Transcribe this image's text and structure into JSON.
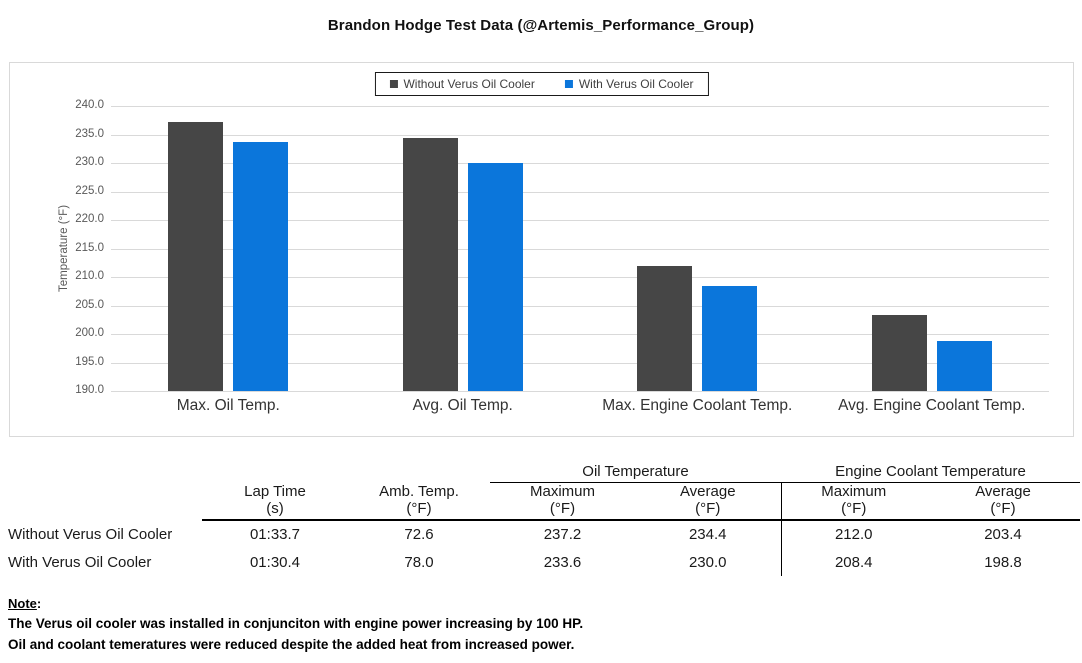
{
  "page_title": "Brandon Hodge Test Data (@Artemis_Performance_Group)",
  "chart_data": {
    "type": "bar",
    "title": "Brandon Hodge Test Data (@Artemis_Performance_Group)",
    "categories": [
      "Max. Oil Temp.",
      "Avg. Oil Temp.",
      "Max. Engine Coolant Temp.",
      "Avg. Engine Coolant Temp."
    ],
    "series": [
      {
        "name": "Without Verus Oil Cooler",
        "color": "#464646",
        "values": [
          237.2,
          234.4,
          212.0,
          203.4
        ]
      },
      {
        "name": "With Verus Oil Cooler",
        "color": "#0b76db",
        "values": [
          233.6,
          230.0,
          208.4,
          198.8
        ]
      }
    ],
    "ylabel": "Temperature (°F)",
    "ylim": [
      190.0,
      240.0
    ],
    "ytick_step": 5.0,
    "ytick_decimals": 1,
    "grid": true,
    "legend_position": "top-center",
    "gridline_color": "#d9d9d9"
  },
  "table": {
    "group_headers": {
      "oil": "Oil Temperature",
      "coolant": "Engine Coolant Temperature"
    },
    "columns": {
      "lap_time": {
        "label": "Lap Time",
        "unit": "(s)"
      },
      "amb_temp": {
        "label": "Amb. Temp.",
        "unit": "(°F)"
      },
      "oil_max": {
        "label": "Maximum",
        "unit": "(°F)"
      },
      "oil_avg": {
        "label": "Average",
        "unit": "(°F)"
      },
      "coolant_max": {
        "label": "Maximum",
        "unit": "(°F)"
      },
      "coolant_avg": {
        "label": "Average",
        "unit": "(°F)"
      }
    },
    "rows": [
      {
        "label": "Without Verus Oil Cooler",
        "values": [
          "01:33.7",
          "72.6",
          "237.2",
          "234.4",
          "212.0",
          "203.4"
        ]
      },
      {
        "label": "With Verus Oil Cooler",
        "values": [
          "01:30.4",
          "78.0",
          "233.6",
          "230.0",
          "208.4",
          "198.8"
        ]
      }
    ]
  },
  "note": {
    "heading": "Note",
    "heading_suffix": ":",
    "lines": [
      "The Verus oil cooler was installed in conjunciton with engine power increasing by 100 HP.",
      "Oil and coolant temeratures were reduced despite the added heat from increased power."
    ]
  }
}
